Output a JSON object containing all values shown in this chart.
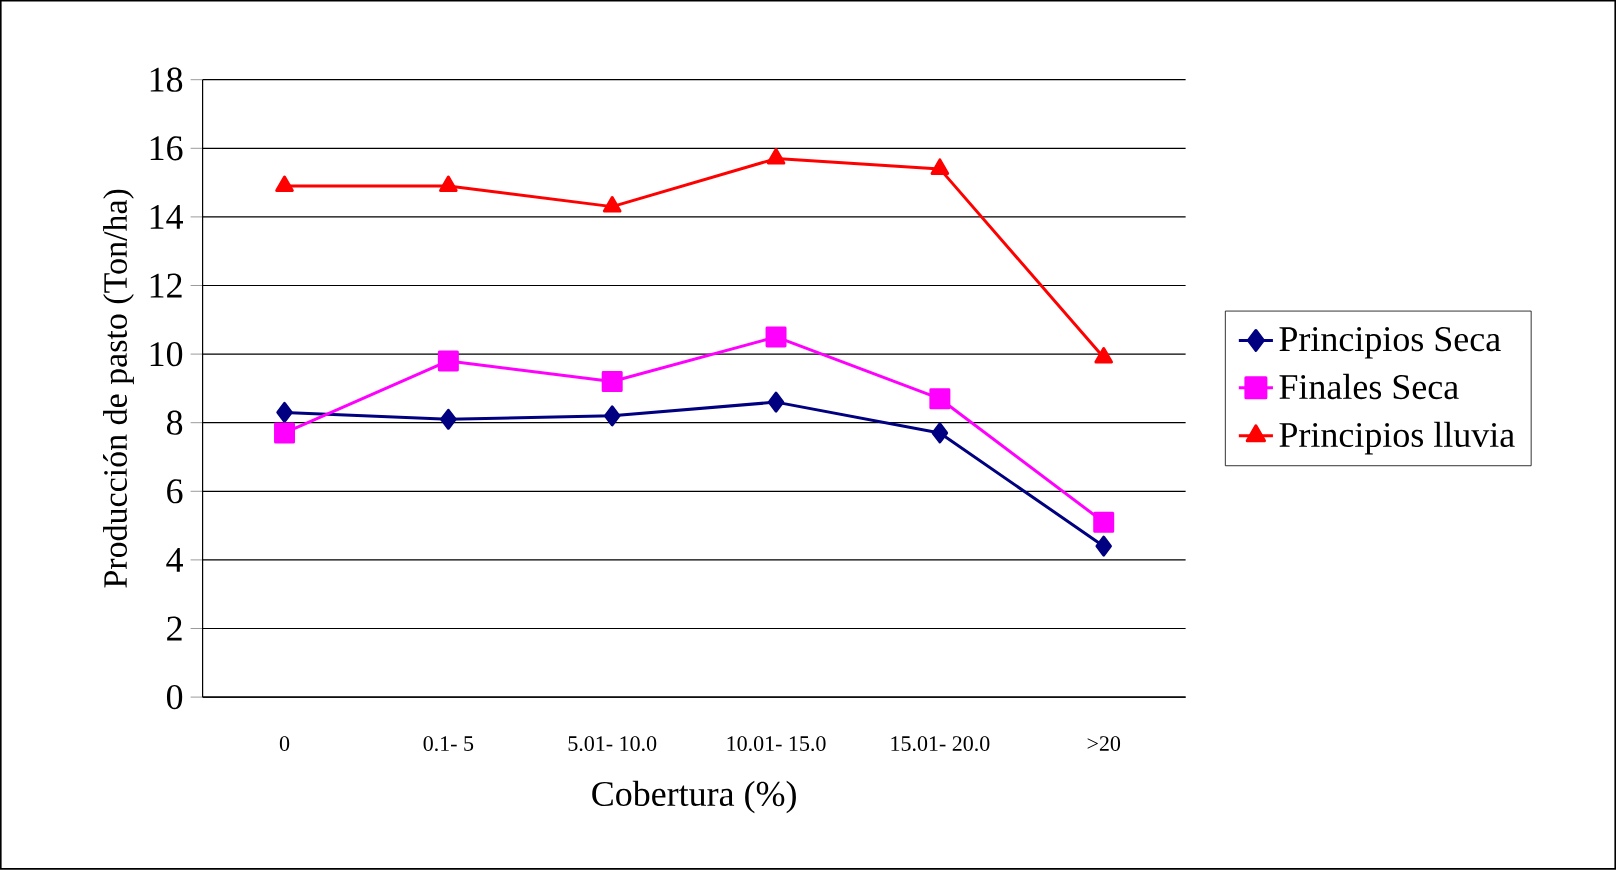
{
  "chart_data": {
    "type": "line",
    "xlabel": "Cobertura (%)",
    "ylabel": "Producción de pasto (Ton/ha)",
    "categories": [
      "0",
      "0.1- 5",
      "5.01- 10.0",
      "10.01- 15.0",
      "15.01- 20.0",
      ">20"
    ],
    "series": [
      {
        "name": "Principios Seca",
        "color": "#000080",
        "marker": "diamond",
        "values": [
          8.3,
          8.1,
          8.2,
          8.6,
          7.7,
          4.4
        ]
      },
      {
        "name": "Finales Seca",
        "color": "#ff00ff",
        "marker": "square",
        "values": [
          7.7,
          9.8,
          9.2,
          10.5,
          8.7,
          5.1
        ]
      },
      {
        "name": "Principios lluvia",
        "color": "#ff0000",
        "marker": "triangle",
        "values": [
          14.9,
          14.9,
          14.3,
          15.7,
          15.4,
          9.9
        ]
      }
    ],
    "ylim": [
      0,
      18
    ],
    "yticks": [
      0,
      2,
      4,
      6,
      8,
      10,
      12,
      14,
      16,
      18
    ],
    "grid": "y",
    "legend": "right",
    "line_style": "solid"
  }
}
